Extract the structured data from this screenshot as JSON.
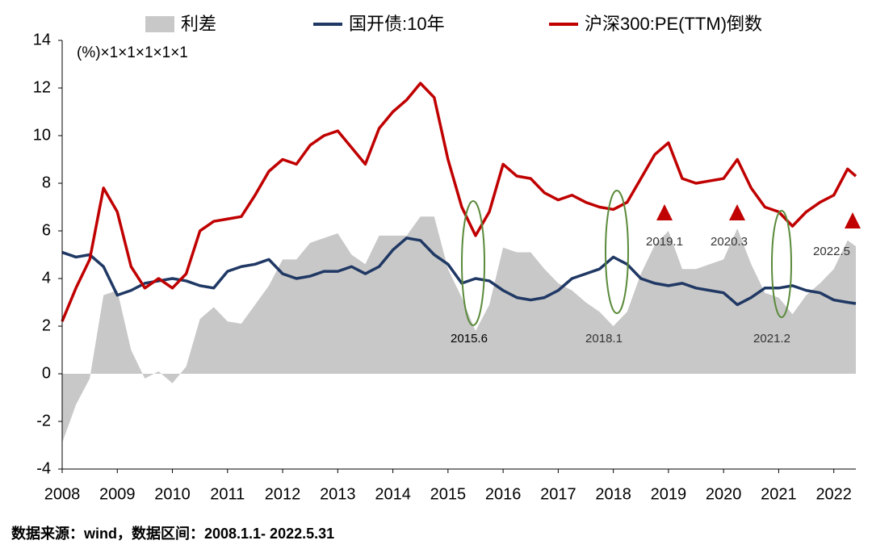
{
  "chart_data": {
    "type": "line",
    "unit_note": "(%)×1×1×1×1×1",
    "source": "数据来源：wind，数据区间：2008.1.1- 2022.5.31",
    "x": [
      2008,
      2008.25,
      2008.5,
      2008.75,
      2009,
      2009.25,
      2009.5,
      2009.75,
      2010,
      2010.25,
      2010.5,
      2010.75,
      2011,
      2011.25,
      2011.5,
      2011.75,
      2012,
      2012.25,
      2012.5,
      2012.75,
      2013,
      2013.25,
      2013.5,
      2013.75,
      2014,
      2014.25,
      2014.5,
      2014.75,
      2015,
      2015.25,
      2015.5,
      2015.75,
      2016,
      2016.25,
      2016.5,
      2016.75,
      2017,
      2017.25,
      2017.5,
      2017.75,
      2018,
      2018.25,
      2018.5,
      2018.75,
      2019,
      2019.25,
      2019.5,
      2019.75,
      2020,
      2020.25,
      2020.5,
      2020.75,
      2021,
      2021.25,
      2021.5,
      2021.75,
      2022,
      2022.25,
      2022.4
    ],
    "series": [
      {
        "name": "利差",
        "color": "#c8c8c8",
        "style": "area",
        "values": [
          -2.9,
          -1.3,
          -0.2,
          3.3,
          3.5,
          1.0,
          -0.2,
          0.1,
          -0.4,
          0.3,
          2.3,
          2.8,
          2.2,
          2.1,
          2.9,
          3.7,
          4.8,
          4.8,
          5.5,
          5.7,
          5.9,
          5.0,
          4.6,
          5.8,
          5.8,
          5.8,
          6.6,
          6.6,
          4.4,
          3.2,
          1.8,
          2.9,
          5.3,
          5.1,
          5.1,
          4.4,
          3.8,
          3.5,
          3.0,
          2.6,
          2.0,
          2.6,
          4.2,
          5.4,
          6.0,
          4.4,
          4.4,
          4.6,
          4.8,
          6.1,
          4.6,
          3.4,
          3.2,
          2.5,
          3.3,
          3.8,
          4.4,
          5.6,
          5.35
        ]
      },
      {
        "name": "国开债:10年",
        "color": "#1f3864",
        "style": "line",
        "values": [
          5.1,
          4.9,
          5.0,
          4.5,
          3.3,
          3.5,
          3.8,
          3.9,
          4.0,
          3.9,
          3.7,
          3.6,
          4.3,
          4.5,
          4.6,
          4.8,
          4.2,
          4.0,
          4.1,
          4.3,
          4.3,
          4.5,
          4.2,
          4.5,
          5.2,
          5.7,
          5.6,
          5.0,
          4.6,
          3.8,
          4.0,
          3.9,
          3.5,
          3.2,
          3.1,
          3.2,
          3.5,
          4.0,
          4.2,
          4.4,
          4.9,
          4.6,
          4.0,
          3.8,
          3.7,
          3.8,
          3.6,
          3.5,
          3.4,
          2.9,
          3.2,
          3.6,
          3.6,
          3.7,
          3.5,
          3.4,
          3.1,
          3.0,
          2.95
        ]
      },
      {
        "name": "沪深300:PE(TTM)倒数",
        "color": "#c00000",
        "style": "line",
        "values": [
          2.2,
          3.6,
          4.8,
          7.8,
          6.8,
          4.5,
          3.6,
          4.0,
          3.6,
          4.2,
          6.0,
          6.4,
          6.5,
          6.6,
          7.5,
          8.5,
          9.0,
          8.8,
          9.6,
          10.0,
          10.2,
          9.5,
          8.8,
          10.3,
          11.0,
          11.5,
          12.2,
          11.6,
          9.0,
          7.0,
          5.8,
          6.8,
          8.8,
          8.3,
          8.2,
          7.6,
          7.3,
          7.5,
          7.2,
          7.0,
          6.9,
          7.2,
          8.2,
          9.2,
          9.7,
          8.2,
          8.0,
          8.1,
          8.2,
          9.0,
          7.8,
          7.0,
          6.8,
          6.2,
          6.8,
          7.2,
          7.5,
          8.6,
          8.3
        ]
      }
    ],
    "annotations": [
      "2015.6",
      "2018.1",
      "2021.2",
      "2019.1",
      "2020.3",
      "2022.5"
    ],
    "xlim": [
      2008,
      2022.4
    ],
    "xticks": [
      2008,
      2009,
      2010,
      2011,
      2012,
      2013,
      2014,
      2015,
      2016,
      2017,
      2018,
      2019,
      2020,
      2021,
      2022
    ],
    "ylim": [
      -4,
      14
    ],
    "yticks": [
      -4,
      -2,
      0,
      2,
      4,
      6,
      8,
      10,
      12,
      14
    ]
  }
}
